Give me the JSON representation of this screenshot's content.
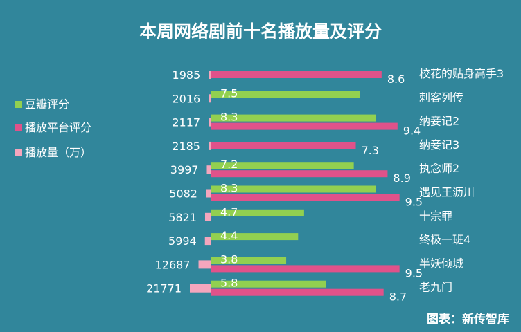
{
  "chart_data": {
    "type": "bar",
    "title": "本周网络剧前十名播放量及评分",
    "source": "图表：新传智库",
    "categories": [
      "校花的贴身高手3",
      "刺客列传",
      "纳妾记2",
      "纳妾记3",
      "执念师2",
      "遇见王沥川",
      "十宗罪",
      "终极一班4",
      "半妖倾城",
      "老九门"
    ],
    "series": [
      {
        "name": "豆瓣评分",
        "color": "#92d050",
        "values": [
          null,
          7.5,
          8.3,
          null,
          7.2,
          8.3,
          4.7,
          4.4,
          3.8,
          5.8
        ]
      },
      {
        "name": "播放平台评分",
        "color": "#e0528a",
        "values": [
          8.6,
          null,
          9.4,
          7.3,
          8.9,
          9.5,
          null,
          null,
          9.5,
          8.7
        ]
      },
      {
        "name": "播放量（万）",
        "color": "#f4a6bd",
        "values": [
          1985,
          2016,
          2117,
          2185,
          3997,
          5082,
          5821,
          5994,
          12687,
          21771
        ]
      }
    ],
    "score_range": [
      0,
      10
    ],
    "legend_position": "left"
  }
}
